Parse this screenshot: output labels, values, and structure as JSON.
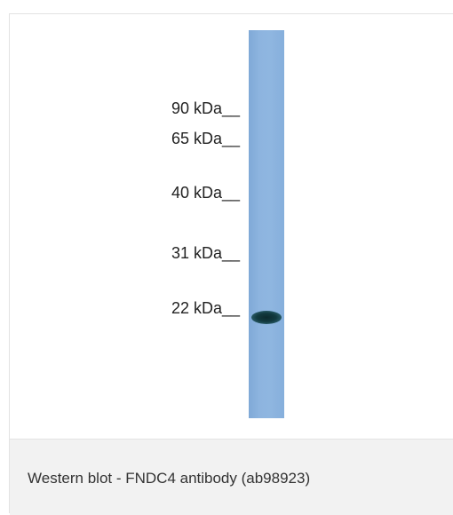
{
  "figure": {
    "markers": [
      {
        "label": "90 kDa__"
      },
      {
        "label": "65 kDa__"
      },
      {
        "label": "40 kDa__"
      },
      {
        "label": "31 kDa__"
      },
      {
        "label": "22 kDa__"
      }
    ],
    "caption": "Western blot - FNDC4 antibody (ab98923)",
    "colors": {
      "lane": "#8db4df",
      "band": "#123a3f",
      "caption_background": "#f2f2f2"
    }
  }
}
